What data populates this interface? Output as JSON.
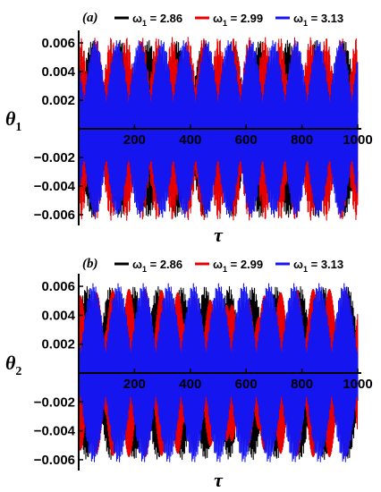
{
  "chart_data": [
    {
      "type": "line",
      "panel_label": "(a)",
      "xlabel": "τ",
      "ylabel": "θ",
      "ylabel_sub": "1",
      "xlim": [
        0,
        1000
      ],
      "ylim": [
        -0.0065,
        0.0065
      ],
      "xticks": [
        200,
        400,
        600,
        800,
        1000
      ],
      "xtick_labels": [
        "200",
        "400",
        "600",
        "800",
        "1000"
      ],
      "yticks": [
        0.006,
        0.004,
        0.002,
        -0.002,
        -0.004,
        -0.006
      ],
      "ytick_labels": [
        "0.006",
        "0.004",
        "0.002",
        "−0.002",
        "−0.004",
        "−0.006"
      ],
      "legend_position": "top",
      "series": [
        {
          "name_main": "ω",
          "name_sub": "1",
          "name_rest": " = 2.86",
          "color": "#000000",
          "envelope_amplitude": 0.0062,
          "envelope_period": 100,
          "carrier_period": 3.0,
          "phase": 0.0,
          "min_amplitude": 0.0008
        },
        {
          "name_main": "ω",
          "name_sub": "1",
          "name_rest": " = 2.99",
          "color": "#e60000",
          "envelope_amplitude": 0.0064,
          "envelope_period": 55,
          "carrier_period": 2.1,
          "phase": 1.2,
          "min_amplitude": 0.003
        },
        {
          "name_main": "ω",
          "name_sub": "1",
          "name_rest": " = 3.13",
          "color": "#1515f0",
          "envelope_amplitude": 0.0062,
          "envelope_period": 80,
          "carrier_period": 2.0,
          "phase": 2.4,
          "min_amplitude": 0.002
        }
      ]
    },
    {
      "type": "line",
      "panel_label": "(b)",
      "xlabel": "τ",
      "ylabel": "θ",
      "ylabel_sub": "2",
      "xlim": [
        0,
        1000
      ],
      "ylim": [
        -0.0065,
        0.0065
      ],
      "xticks": [
        200,
        400,
        600,
        800,
        1000
      ],
      "xtick_labels": [
        "200",
        "400",
        "600",
        "800",
        "1000"
      ],
      "yticks": [
        0.006,
        0.004,
        0.002,
        -0.002,
        -0.004,
        -0.006
      ],
      "ytick_labels": [
        "0.006",
        "0.004",
        "0.002",
        "−0.002",
        "−0.004",
        "−0.006"
      ],
      "legend_position": "top",
      "series": [
        {
          "name_main": "ω",
          "name_sub": "1",
          "name_rest": " = 2.86",
          "color": "#000000",
          "envelope_amplitude": 0.006,
          "envelope_period": 85,
          "carrier_period": 3.0,
          "phase": 0.5,
          "min_amplitude": 0.001
        },
        {
          "name_main": "ω",
          "name_sub": "1",
          "name_rest": " = 2.99",
          "color": "#e60000",
          "envelope_amplitude": 0.0058,
          "envelope_period": 60,
          "carrier_period": 2.2,
          "phase": 1.6,
          "min_amplitude": 0.0025
        },
        {
          "name_main": "ω",
          "name_sub": "1",
          "name_rest": " = 3.13",
          "color": "#1515f0",
          "envelope_amplitude": 0.0062,
          "envelope_period": 90,
          "carrier_period": 2.0,
          "phase": 2.9,
          "min_amplitude": 0.0015
        }
      ]
    }
  ]
}
